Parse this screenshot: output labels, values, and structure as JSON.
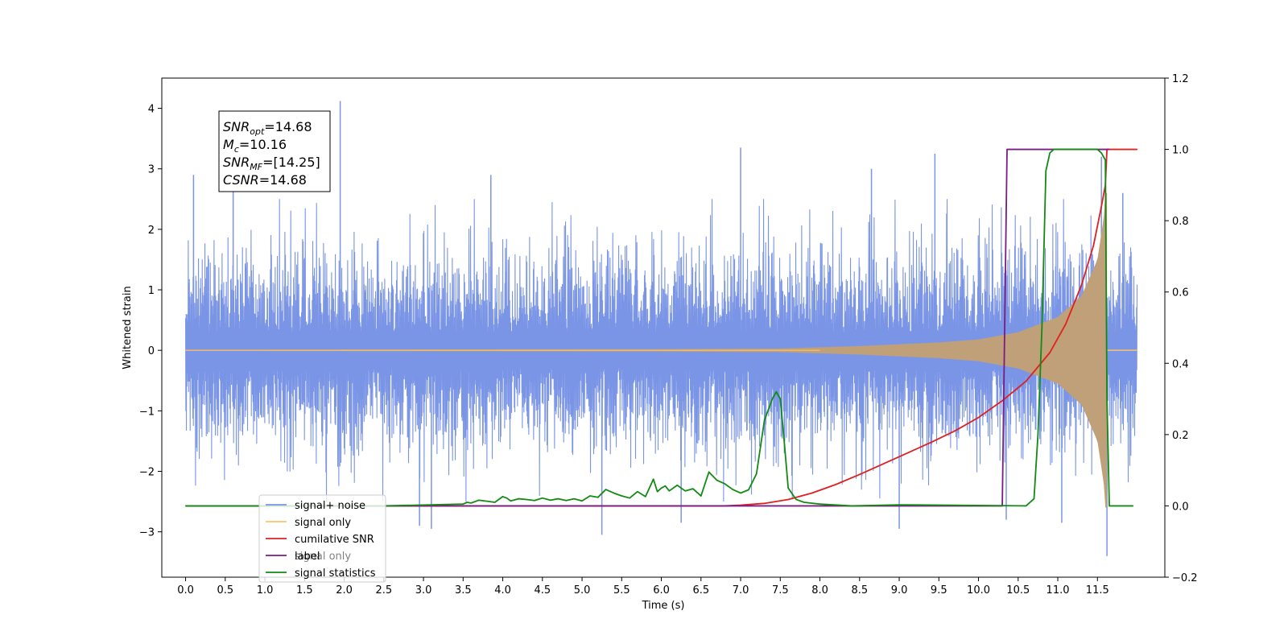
{
  "chart_data": {
    "type": "line",
    "title": "",
    "xlabel": "Time (s)",
    "ylabel": "Whitened strain",
    "y2label": "",
    "xlim": [
      -0.3,
      12.35
    ],
    "ylim": [
      -3.75,
      4.5
    ],
    "y2lim": [
      -0.2,
      1.2
    ],
    "x_ticks": [
      "0.0",
      "0.5",
      "1.0",
      "1.5",
      "2.0",
      "2.5",
      "3.0",
      "3.5",
      "4.0",
      "4.5",
      "5.0",
      "5.5",
      "6.0",
      "6.5",
      "7.0",
      "7.5",
      "8.0",
      "8.5",
      "9.0",
      "9.5",
      "10.0",
      "10.5",
      "11.0",
      "11.5"
    ],
    "y_ticks": [
      "4",
      "3",
      "2",
      "1",
      "0",
      "−1",
      "−2",
      "−3"
    ],
    "y2_ticks": [
      "1.2",
      "1.0",
      "0.8",
      "0.6",
      "0.4",
      "0.2",
      "0.0",
      "−0.2"
    ],
    "grid": false,
    "legend_position": "lower-left",
    "annotation": {
      "lines": [
        {
          "base": "SNR",
          "sub": "opt",
          "text": "=14.68"
        },
        {
          "base": "M",
          "sub": "c",
          "text": "=10.16"
        },
        {
          "base": "SNR",
          "sub": "MF",
          "text": "=[14.25]"
        },
        {
          "base": "CSNR",
          "sub": "",
          "text": "=14.68"
        }
      ]
    },
    "series": [
      {
        "name": "signal+ noise",
        "color": "#7b95e6",
        "axis": "left",
        "kind": "noisy-strain",
        "x_range": [
          0.0,
          12.0
        ],
        "noise_band": [
          -2.0,
          2.0
        ],
        "peaks_high": [
          [
            0.1,
            2.9
          ],
          [
            0.6,
            2.7
          ],
          [
            1.95,
            4.12
          ],
          [
            3.85,
            2.9
          ],
          [
            7.0,
            3.35
          ],
          [
            8.65,
            3.0
          ],
          [
            9.45,
            3.25
          ],
          [
            11.55,
            3.2
          ],
          [
            11.82,
            2.6
          ]
        ],
        "peaks_low": [
          [
            2.95,
            -2.9
          ],
          [
            3.1,
            -2.95
          ],
          [
            5.25,
            -3.05
          ],
          [
            6.25,
            -2.85
          ],
          [
            9.0,
            -2.95
          ],
          [
            10.35,
            -2.8
          ],
          [
            11.05,
            -2.85
          ],
          [
            11.62,
            -3.4
          ]
        ]
      },
      {
        "name": "signal only",
        "color": "#f7c46a",
        "axis": "left",
        "kind": "chirp",
        "x_range": [
          0.0,
          11.62
        ],
        "envelope": [
          [
            0.0,
            0.01
          ],
          [
            6.0,
            0.02
          ],
          [
            7.5,
            0.03
          ],
          [
            8.5,
            0.07
          ],
          [
            9.5,
            0.13
          ],
          [
            10.0,
            0.18
          ],
          [
            10.5,
            0.3
          ],
          [
            11.0,
            0.55
          ],
          [
            11.3,
            0.9
          ],
          [
            11.5,
            1.5
          ],
          [
            11.58,
            2.2
          ],
          [
            11.6,
            2.6
          ]
        ],
        "fill_color": "#c0a078"
      },
      {
        "name": "cumilative SNR",
        "color": "#e02020",
        "axis": "right",
        "x": [
          0.0,
          6.8,
          7.0,
          7.3,
          7.6,
          7.9,
          8.2,
          8.5,
          8.8,
          9.1,
          9.4,
          9.7,
          10.0,
          10.3,
          10.6,
          10.9,
          11.1,
          11.3,
          11.45,
          11.55,
          11.6,
          11.62,
          11.65,
          12.0
        ],
        "values": [
          0.0,
          0.0,
          0.002,
          0.007,
          0.018,
          0.036,
          0.06,
          0.088,
          0.118,
          0.148,
          0.178,
          0.21,
          0.248,
          0.295,
          0.35,
          0.43,
          0.51,
          0.62,
          0.73,
          0.84,
          0.9,
          1.0,
          1.0,
          1.0
        ]
      },
      {
        "name": "label",
        "color": "#7a1c82",
        "axis": "right",
        "x": [
          0.0,
          10.3,
          10.36,
          11.65
        ],
        "values": [
          0.0,
          0.0,
          1.0,
          1.0
        ]
      },
      {
        "name": "signal statistics",
        "color": "#138a13",
        "axis": "right",
        "x": [
          0.0,
          2.5,
          3.3,
          3.5,
          3.55,
          3.6,
          3.7,
          3.8,
          3.9,
          4.0,
          4.05,
          4.1,
          4.2,
          4.3,
          4.4,
          4.5,
          4.6,
          4.7,
          4.8,
          4.9,
          5.0,
          5.1,
          5.2,
          5.3,
          5.4,
          5.5,
          5.6,
          5.7,
          5.8,
          5.9,
          5.95,
          6.0,
          6.05,
          6.1,
          6.2,
          6.3,
          6.4,
          6.5,
          6.6,
          6.7,
          6.8,
          6.9,
          7.0,
          7.1,
          7.2,
          7.3,
          7.35,
          7.4,
          7.45,
          7.5,
          7.55,
          7.6,
          7.7,
          7.8,
          8.0,
          8.4,
          9.0,
          10.6,
          10.7,
          10.75,
          10.8,
          10.85,
          10.9,
          10.95,
          11.0,
          11.1,
          11.2,
          11.3,
          11.5,
          11.55,
          11.6,
          11.62,
          11.65,
          11.7,
          11.95
        ],
        "values": [
          0.0,
          0.0,
          0.004,
          0.005,
          0.01,
          0.008,
          0.016,
          0.013,
          0.01,
          0.026,
          0.022,
          0.014,
          0.02,
          0.018,
          0.015,
          0.022,
          0.016,
          0.02,
          0.015,
          0.02,
          0.014,
          0.028,
          0.024,
          0.046,
          0.036,
          0.028,
          0.022,
          0.04,
          0.026,
          0.075,
          0.04,
          0.05,
          0.056,
          0.042,
          0.058,
          0.042,
          0.048,
          0.028,
          0.095,
          0.072,
          0.062,
          0.046,
          0.036,
          0.045,
          0.09,
          0.24,
          0.27,
          0.3,
          0.32,
          0.3,
          0.18,
          0.05,
          0.018,
          0.01,
          0.005,
          0.0,
          0.003,
          0.0,
          0.02,
          0.2,
          0.5,
          0.94,
          0.99,
          1.0,
          1.0,
          1.0,
          1.0,
          1.0,
          1.0,
          0.99,
          0.97,
          0.3,
          0.0,
          0.0,
          0.0
        ]
      }
    ],
    "legend": [
      {
        "label": "signal+ noise",
        "color": "#7b95e6"
      },
      {
        "label": "signal only",
        "color": "#f7c46a"
      },
      {
        "label": "cumilative SNR",
        "color": "#e02020"
      },
      {
        "label": "label",
        "color": "#7a1c82"
      },
      {
        "label": "signal statistics",
        "color": "#138a13"
      }
    ],
    "ghost_legend": [
      {
        "label": "signal only",
        "color": "#f7c46a"
      }
    ]
  }
}
